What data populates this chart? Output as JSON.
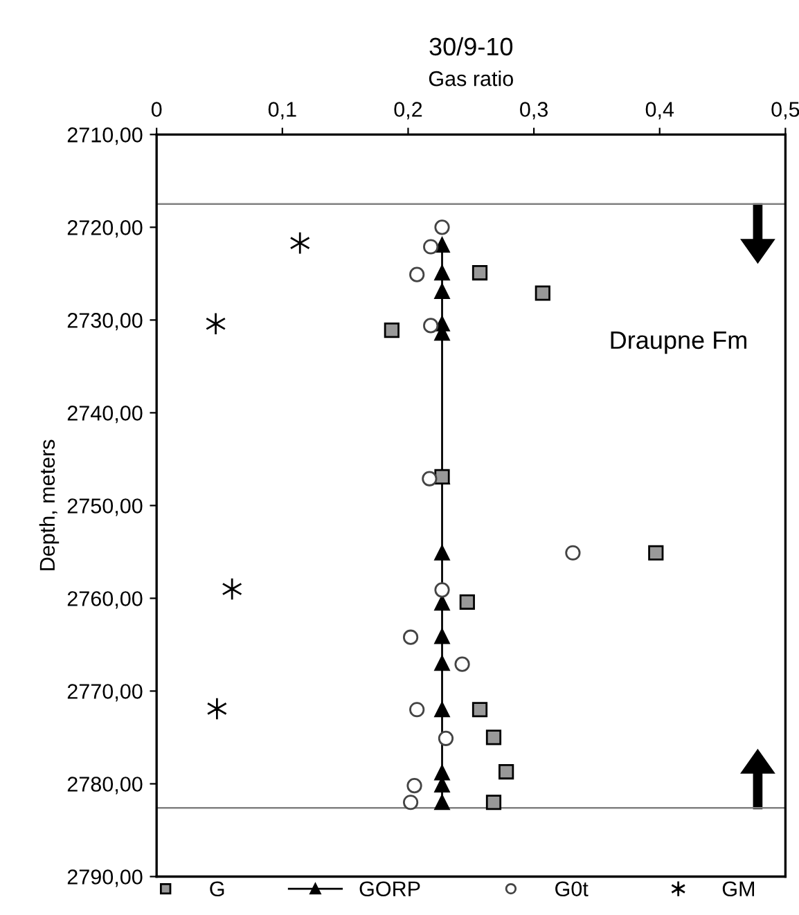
{
  "chart_data": {
    "type": "scatter",
    "title": "30/9-10",
    "xlabel": "Gas ratio",
    "ylabel": "Depth, meters",
    "xlim": [
      0,
      0.5
    ],
    "xticks": [
      0,
      {
        "value": 0.1,
        "label": "0,1"
      },
      {
        "value": 0.2,
        "label": "0,2"
      },
      {
        "value": 0.3,
        "label": "0,3"
      },
      {
        "value": 0.4,
        "label": "0,4"
      },
      {
        "value": 0.5,
        "label": "0,5"
      }
    ],
    "ylim": [
      2790,
      2710
    ],
    "yticks": [
      {
        "value": 2710,
        "label": "2710,00"
      },
      {
        "value": 2720,
        "label": "2720,00"
      },
      {
        "value": 2730,
        "label": "2730,00"
      },
      {
        "value": 2740,
        "label": "2740,00"
      },
      {
        "value": 2750,
        "label": "2750,00"
      },
      {
        "value": 2760,
        "label": "2760,00"
      },
      {
        "value": 2770,
        "label": "2770,00"
      },
      {
        "value": 2780,
        "label": "2780,00"
      },
      {
        "value": 2790,
        "label": "2790,00"
      }
    ],
    "series": [
      {
        "name": "G",
        "marker": "square",
        "color": "#999999",
        "x": [
          0.257,
          0.307,
          0.187,
          0.227,
          0.397,
          0.247,
          0.257,
          0.268,
          0.278,
          0.268
        ],
        "values": [
          2724.9,
          2727.1,
          2731.1,
          2746.9,
          2755.1,
          2760.4,
          2772.0,
          2775.0,
          2778.7,
          2782.0
        ]
      },
      {
        "name": "GORP",
        "type": "line",
        "marker": "triangle",
        "line_style": "solid",
        "color": "#000000",
        "x": [
          0.227,
          0.227,
          0.227,
          0.227,
          0.227,
          0.227,
          0.227,
          0.227,
          0.227,
          0.227,
          0.227,
          0.227,
          0.227,
          0.227
        ],
        "values": [
          2721.9,
          2724.9,
          2726.9,
          2730.4,
          2731.4,
          2746.9,
          2755.1,
          2760.5,
          2764.1,
          2767.0,
          2772.0,
          2778.8,
          2780.1,
          2782.0
        ]
      },
      {
        "name": "G0t",
        "marker": "circle",
        "color": "#ffffff",
        "x": [
          0.227,
          0.218,
          0.207,
          0.218,
          0.217,
          0.331,
          0.227,
          0.202,
          0.243,
          0.207,
          0.23,
          0.205,
          0.202
        ],
        "values": [
          2720.0,
          2722.1,
          2725.1,
          2730.6,
          2747.1,
          2755.1,
          2759.1,
          2764.2,
          2767.1,
          2772.0,
          2775.1,
          2780.2,
          2782.0
        ]
      },
      {
        "name": "GM",
        "marker": "cross",
        "color": "#000000",
        "x": [
          0.114,
          0.047,
          0.06,
          0.048
        ],
        "values": [
          2721.7,
          2730.4,
          2759.0,
          2771.9
        ]
      }
    ],
    "ref_lines": [
      {
        "axis": "y",
        "value": 2717.5,
        "color": "#808080"
      },
      {
        "axis": "y",
        "value": 2782.6,
        "color": "#808080"
      }
    ],
    "annotations": [
      "Draupne Fm"
    ],
    "legend": "bottom",
    "grid": false
  }
}
